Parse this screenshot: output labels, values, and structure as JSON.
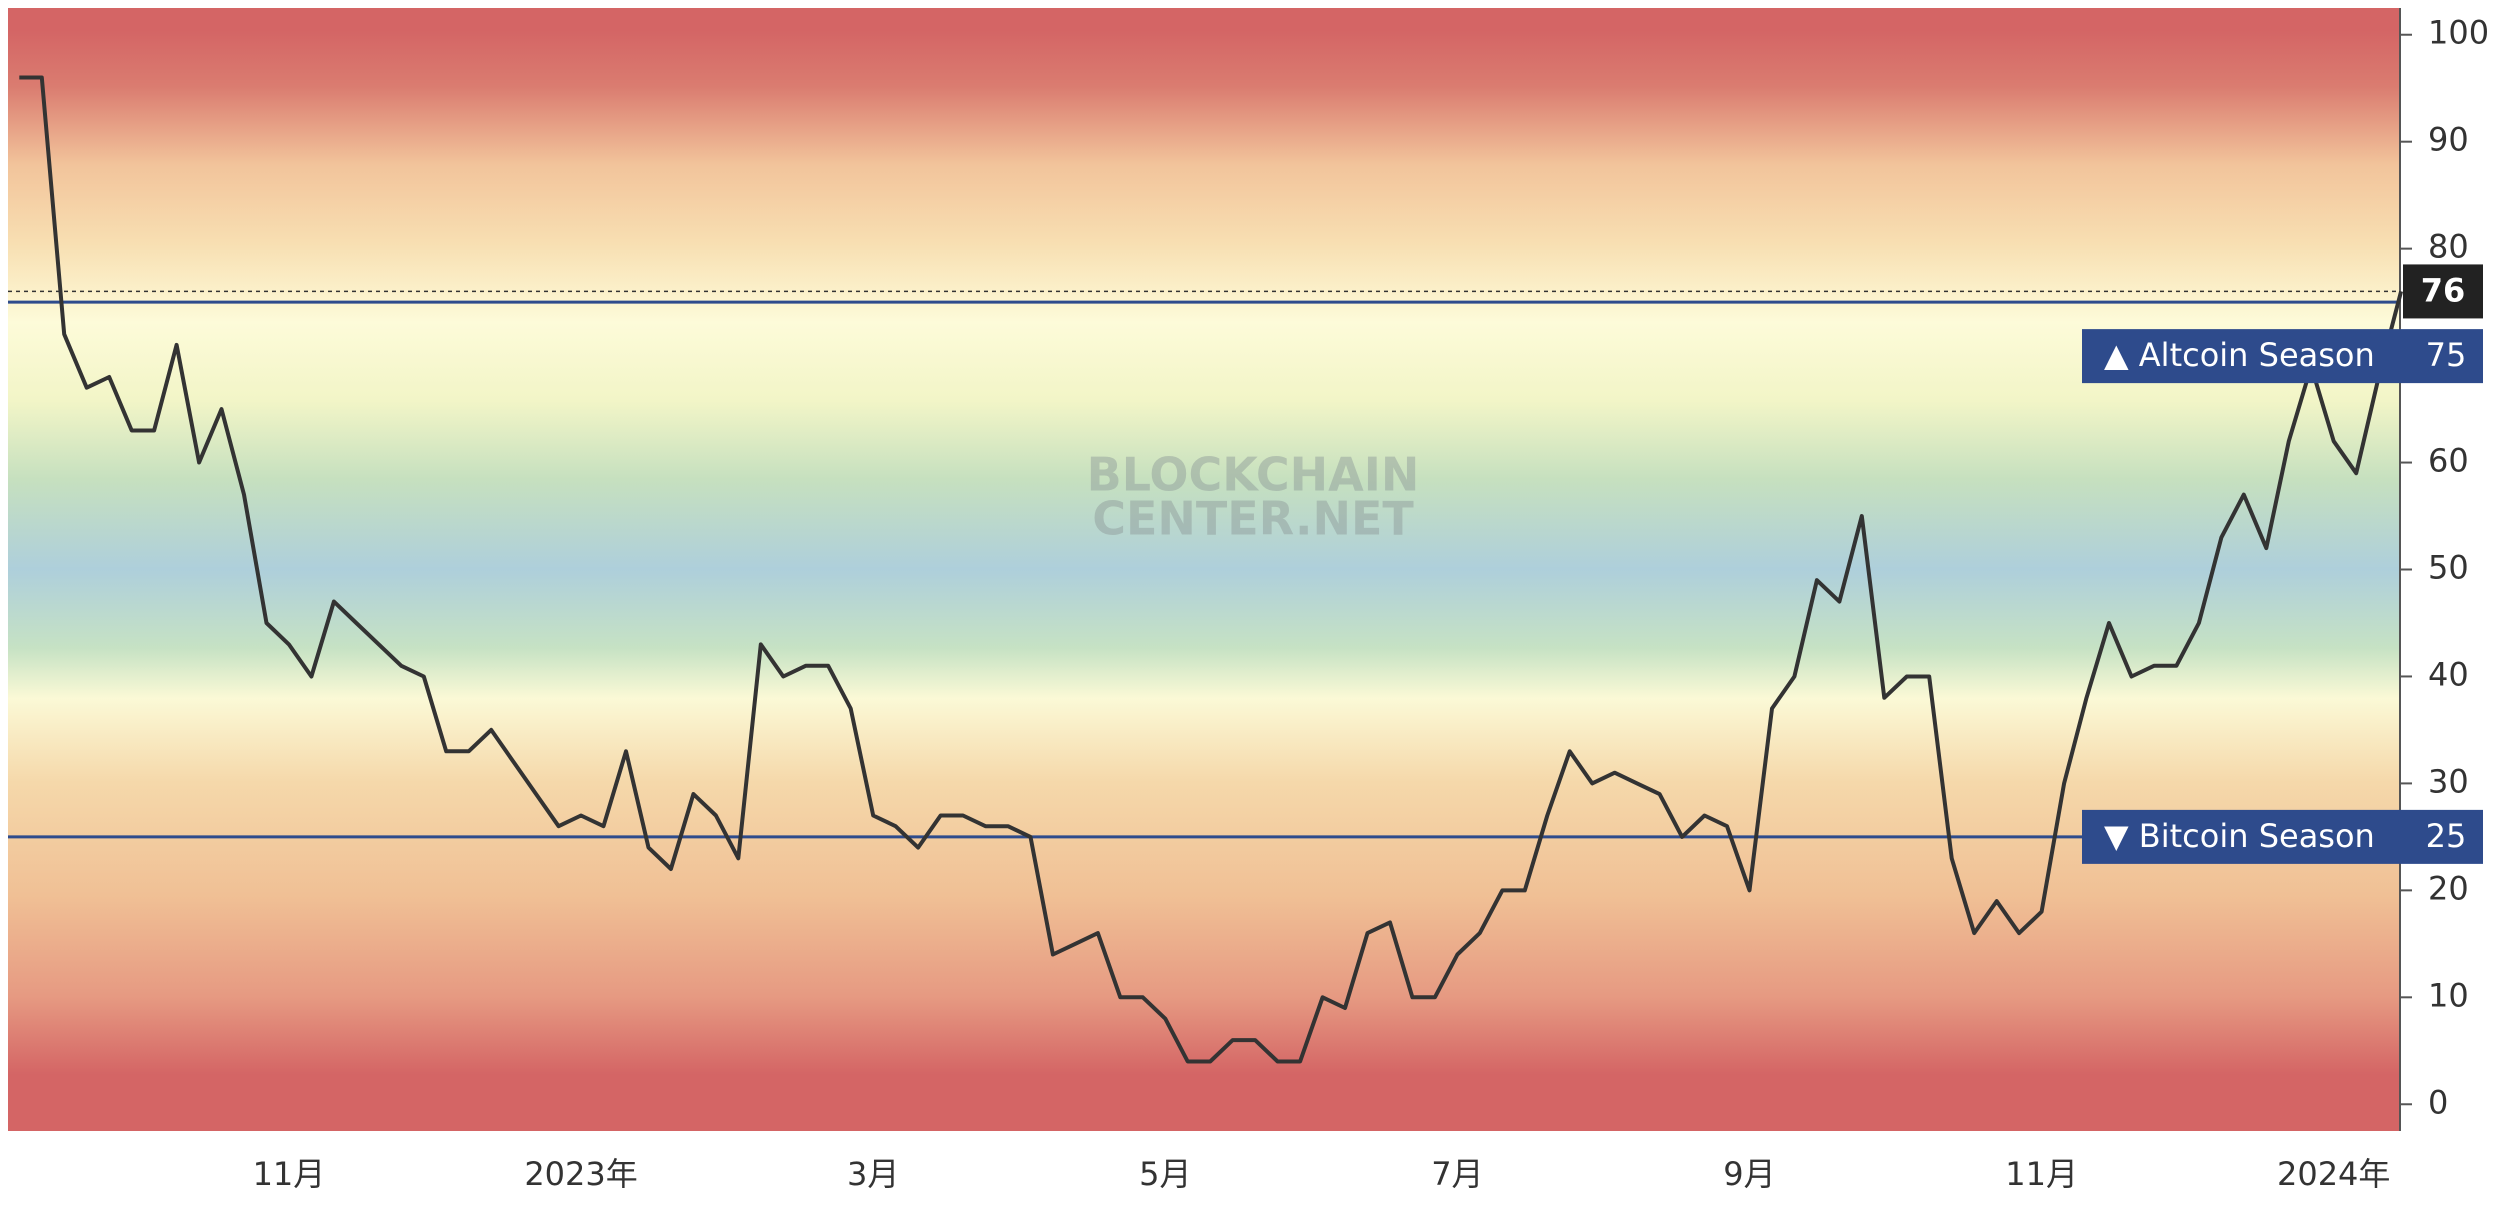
{
  "chart_data": {
    "type": "line",
    "categories": [
      null,
      null,
      null,
      null,
      null,
      null,
      null,
      null,
      null,
      null,
      null,
      null,
      "11月",
      null,
      null,
      null,
      null,
      null,
      null,
      null,
      null,
      null,
      null,
      null,
      null,
      "2023年",
      null,
      null,
      null,
      null,
      null,
      null,
      null,
      null,
      null,
      null,
      null,
      null,
      "3月",
      null,
      null,
      null,
      null,
      null,
      null,
      null,
      null,
      null,
      null,
      null,
      null,
      "5月",
      null,
      null,
      null,
      null,
      null,
      null,
      null,
      null,
      null,
      null,
      null,
      null,
      "7月",
      null,
      null,
      null,
      null,
      null,
      null,
      null,
      null,
      null,
      null,
      null,
      null,
      "9月",
      null,
      null,
      null,
      null,
      null,
      null,
      null,
      null,
      null,
      null,
      null,
      null,
      "11月",
      null,
      null,
      null,
      null,
      null,
      null,
      null,
      null,
      null,
      null,
      null,
      null,
      "2024年",
      null,
      null,
      null
    ],
    "series": [
      {
        "color": "#333333",
        "values": [
          96,
          96,
          72,
          67,
          68,
          63,
          63,
          71,
          60,
          65,
          57,
          45,
          43,
          40,
          47,
          45,
          43,
          41,
          40,
          33,
          33,
          35,
          32,
          29,
          26,
          27,
          26,
          33,
          24,
          22,
          29,
          27,
          23,
          43,
          40,
          41,
          41,
          37,
          27,
          26,
          24,
          27,
          27,
          26,
          26,
          25,
          14,
          15,
          16,
          10,
          10,
          8,
          4,
          4,
          6,
          6,
          4,
          4,
          10,
          9,
          16,
          17,
          10,
          10,
          14,
          16,
          20,
          20,
          27,
          33,
          30,
          31,
          30,
          29,
          25,
          27,
          26,
          20,
          37,
          40,
          49,
          47,
          55,
          38,
          40,
          40,
          23,
          16,
          19,
          16,
          18,
          30,
          38,
          45,
          40,
          41,
          41,
          45,
          53,
          57,
          52,
          62,
          69,
          62,
          59,
          68,
          76
        ]
      }
    ],
    "ylim": [
      -2.5,
      102.5
    ],
    "yticks": [
      0,
      10,
      20,
      30,
      40,
      50,
      60,
      80,
      90,
      100
    ],
    "thresholds": [
      {
        "label": "▲ Altcoin Season",
        "value": 75,
        "color": "#2e4b8c"
      },
      {
        "label": "▼ Bitcoin Season",
        "value": 25,
        "color": "#2e4b8c"
      }
    ],
    "watermark": [
      "BLOCKCHAIN",
      "CENTER.NET"
    ]
  }
}
